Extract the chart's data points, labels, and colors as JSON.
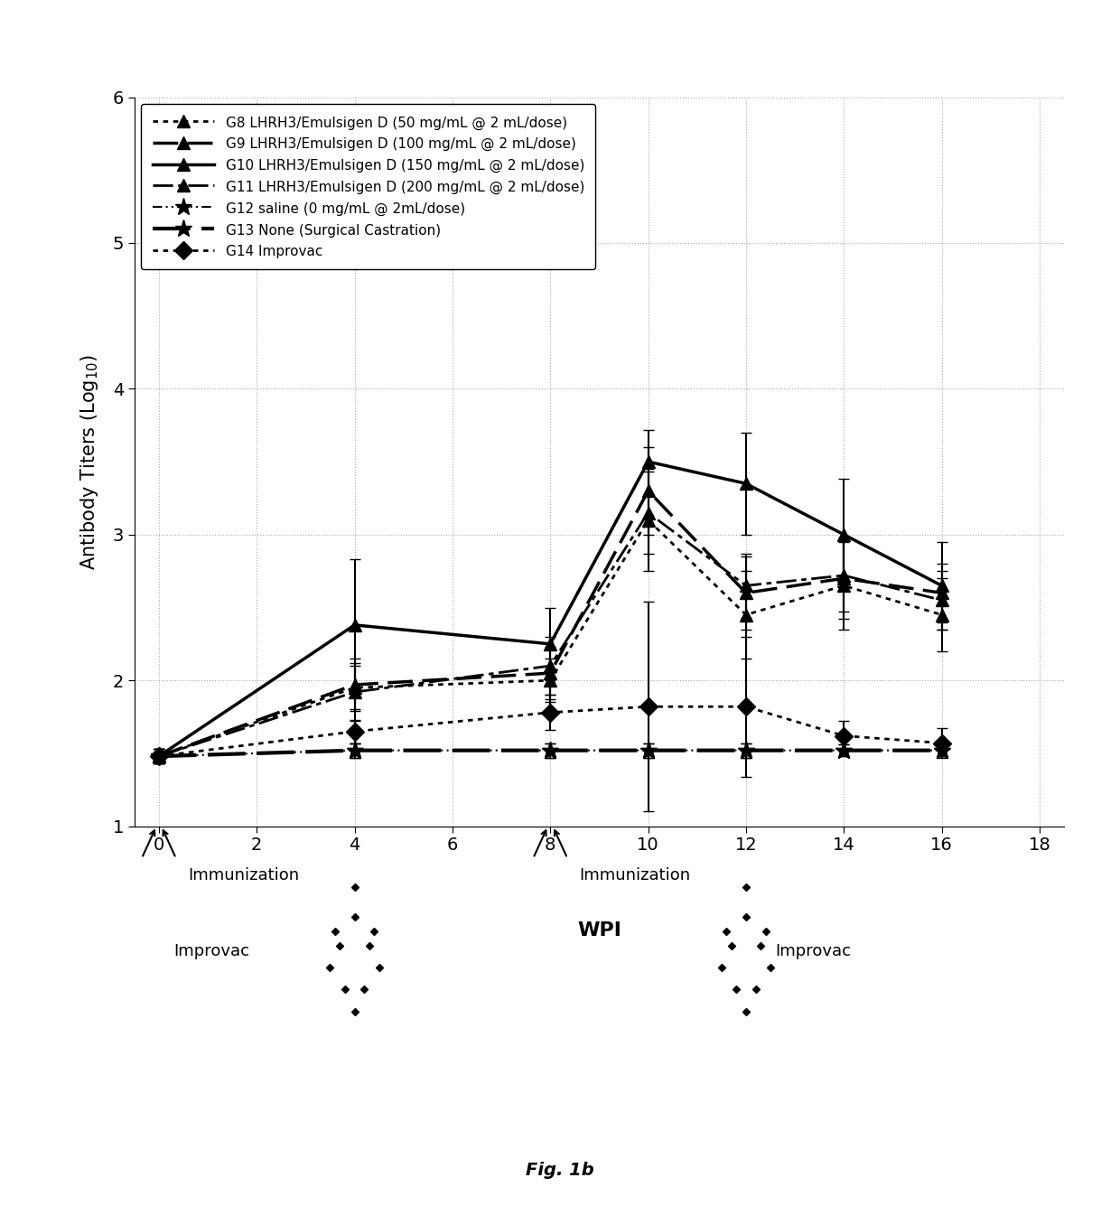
{
  "title": "Fig. 1b",
  "ylabel": "Antibody Titers (Log$_{10}$)",
  "xlim": [
    -0.5,
    18.5
  ],
  "ylim": [
    1.0,
    6.0
  ],
  "yticks": [
    1,
    2,
    3,
    4,
    5,
    6
  ],
  "xticks": [
    0,
    2,
    4,
    6,
    8,
    10,
    12,
    14,
    16,
    18
  ],
  "groups": {
    "G8": {
      "label": "G8 LHRH3/Emulsigen D (50 mg/mL @ 2 mL/dose)",
      "x": [
        0,
        4,
        8,
        10,
        12,
        14,
        16
      ],
      "y": [
        1.48,
        1.95,
        2.0,
        3.1,
        2.45,
        2.65,
        2.45
      ],
      "yerr": [
        0.05,
        0.15,
        0.15,
        0.35,
        0.3,
        0.3,
        0.25
      ]
    },
    "G9": {
      "label": "G9 LHRH3/Emulsigen D (100 mg/mL @ 2 mL/dose)",
      "x": [
        0,
        4,
        8,
        10,
        12,
        14,
        16
      ],
      "y": [
        1.48,
        1.97,
        2.05,
        3.3,
        2.6,
        2.7,
        2.6
      ],
      "yerr": [
        0.05,
        0.18,
        0.18,
        0.3,
        0.25,
        0.28,
        0.2
      ]
    },
    "G10": {
      "label": "G10 LHRH3/Emulsigen D (150 mg/mL @ 2 mL/dose)",
      "x": [
        0,
        4,
        8,
        10,
        12,
        14,
        16
      ],
      "y": [
        1.48,
        2.38,
        2.25,
        3.5,
        3.35,
        3.0,
        2.65
      ],
      "yerr": [
        0.05,
        0.45,
        0.25,
        0.22,
        0.35,
        0.38,
        0.3
      ]
    },
    "G11": {
      "label": "G11 LHRH3/Emulsigen D (200 mg/mL @ 2 mL/dose)",
      "x": [
        0,
        4,
        8,
        10,
        12,
        14,
        16
      ],
      "y": [
        1.48,
        1.92,
        2.1,
        3.15,
        2.65,
        2.72,
        2.55
      ],
      "yerr": [
        0.05,
        0.2,
        0.2,
        0.28,
        0.22,
        0.25,
        0.2
      ]
    },
    "G12": {
      "label": "G12 saline (0 mg/mL @ 2mL/dose)",
      "x": [
        0,
        4,
        8,
        10,
        12,
        14,
        16
      ],
      "y": [
        1.48,
        1.52,
        1.52,
        1.52,
        1.52,
        1.52,
        1.52
      ],
      "yerr": [
        0.03,
        0.05,
        0.05,
        0.05,
        0.05,
        0.04,
        0.04
      ]
    },
    "G13": {
      "label": "G13 None (Surgical Castration)",
      "x": [
        0,
        4,
        8,
        10,
        12,
        14,
        16
      ],
      "y": [
        1.48,
        1.52,
        1.52,
        1.52,
        1.52,
        1.52,
        1.52
      ],
      "yerr": [
        0.03,
        0.05,
        0.05,
        0.05,
        0.05,
        0.04,
        0.04
      ]
    },
    "G14": {
      "label": "G14 Improvac",
      "x": [
        0,
        4,
        8,
        10,
        12,
        14,
        16
      ],
      "y": [
        1.48,
        1.65,
        1.78,
        1.82,
        1.82,
        1.62,
        1.57
      ],
      "yerr": [
        0.05,
        0.08,
        0.12,
        0.72,
        0.48,
        0.1,
        0.1
      ]
    }
  },
  "background_color": "#ffffff",
  "grid_color": "#aaaaaa"
}
